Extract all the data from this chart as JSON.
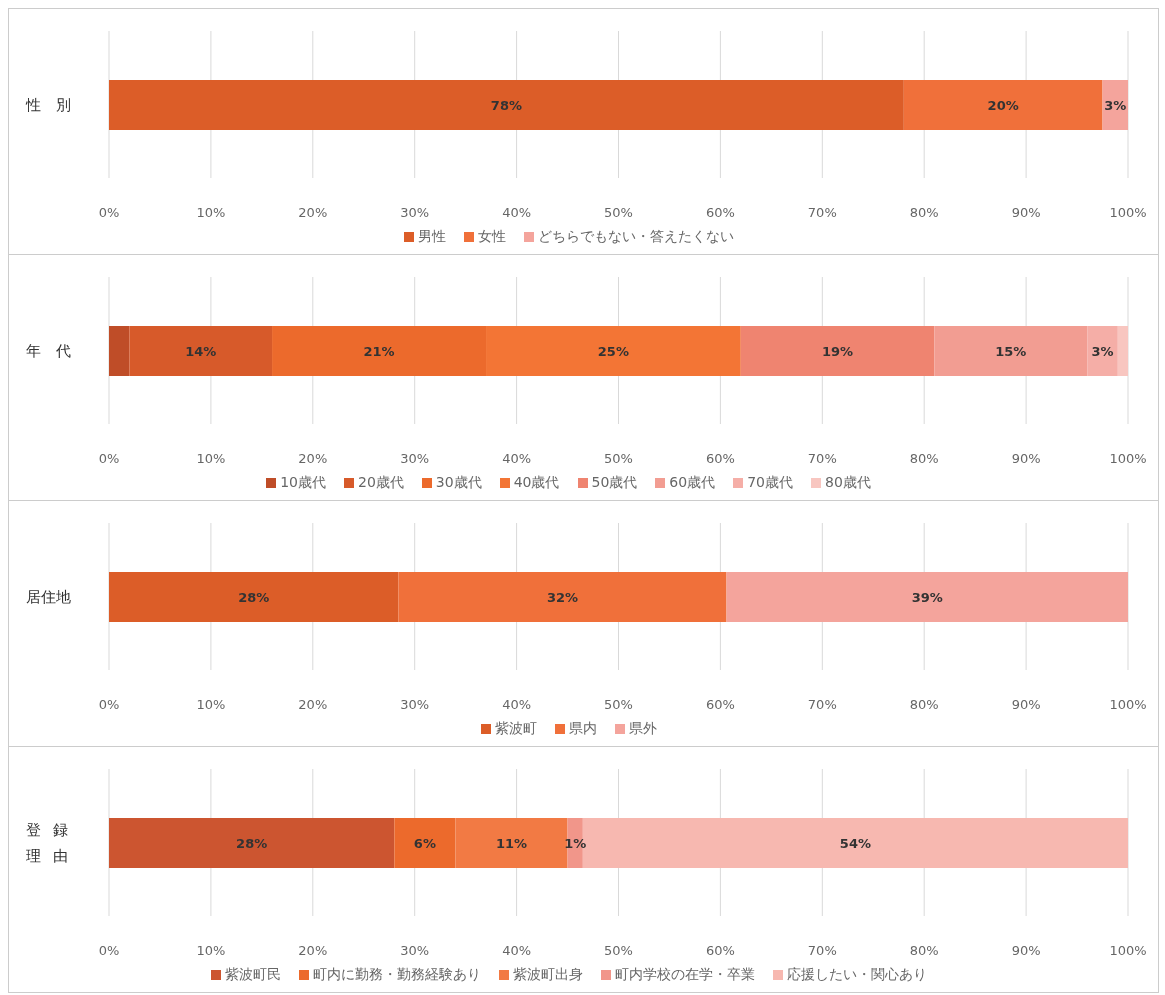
{
  "chart_data": [
    {
      "type": "bar",
      "orientation": "horizontal",
      "stacked": true,
      "categories": [
        "性　別"
      ],
      "xlim": [
        0,
        100
      ],
      "xticks": [
        {
          "value": 0,
          "label": "0%"
        },
        {
          "value": 10,
          "label": "10%"
        },
        {
          "value": 20,
          "label": "20%"
        },
        {
          "value": 30,
          "label": "30%"
        },
        {
          "value": 40,
          "label": "40%"
        },
        {
          "value": 50,
          "label": "50%"
        },
        {
          "value": 60,
          "label": "60%"
        },
        {
          "value": 70,
          "label": "70%"
        },
        {
          "value": 80,
          "label": "80%"
        },
        {
          "value": 90,
          "label": "90%"
        },
        {
          "value": 100,
          "label": "100%"
        }
      ],
      "grid": "x",
      "legend": "bottom",
      "series": [
        {
          "name": "男性",
          "color": "#dc5d28",
          "values": [
            78
          ],
          "value_labels": [
            "78%"
          ]
        },
        {
          "name": "女性",
          "color": "#f0703a",
          "values": [
            19.5
          ],
          "value_labels": [
            "20%"
          ]
        },
        {
          "name": "どちらでもない・答えたくない",
          "color": "#f4a49c",
          "values": [
            2.5
          ],
          "value_labels": [
            "3%"
          ]
        }
      ]
    },
    {
      "type": "bar",
      "orientation": "horizontal",
      "stacked": true,
      "categories": [
        "年　代"
      ],
      "xlim": [
        0,
        100
      ],
      "xticks": [
        {
          "value": 0,
          "label": "0%"
        },
        {
          "value": 10,
          "label": "10%"
        },
        {
          "value": 20,
          "label": "20%"
        },
        {
          "value": 30,
          "label": "30%"
        },
        {
          "value": 40,
          "label": "40%"
        },
        {
          "value": 50,
          "label": "50%"
        },
        {
          "value": 60,
          "label": "60%"
        },
        {
          "value": 70,
          "label": "70%"
        },
        {
          "value": 80,
          "label": "80%"
        },
        {
          "value": 90,
          "label": "90%"
        },
        {
          "value": 100,
          "label": "100%"
        }
      ],
      "grid": "x",
      "legend": "bottom",
      "series": [
        {
          "name": "10歳代",
          "color": "#bf4d28",
          "values": [
            2
          ],
          "value_labels": [
            null
          ]
        },
        {
          "name": "20歳代",
          "color": "#d75a2a",
          "values": [
            14
          ],
          "value_labels": [
            "14%"
          ]
        },
        {
          "name": "30歳代",
          "color": "#ec6a2c",
          "values": [
            21
          ],
          "value_labels": [
            "21%"
          ]
        },
        {
          "name": "40歳代",
          "color": "#f37535",
          "values": [
            25
          ],
          "value_labels": [
            "25%"
          ]
        },
        {
          "name": "50歳代",
          "color": "#ef8470",
          "values": [
            19
          ],
          "value_labels": [
            "19%"
          ]
        },
        {
          "name": "60歳代",
          "color": "#f29d92",
          "values": [
            15
          ],
          "value_labels": [
            "15%"
          ]
        },
        {
          "name": "70歳代",
          "color": "#f5aea7",
          "values": [
            3
          ],
          "value_labels": [
            "3%"
          ]
        },
        {
          "name": "80歳代",
          "color": "#f8c6c0",
          "values": [
            1
          ],
          "value_labels": [
            null
          ]
        }
      ]
    },
    {
      "type": "bar",
      "orientation": "horizontal",
      "stacked": true,
      "categories": [
        "居住地"
      ],
      "xlim": [
        0,
        100
      ],
      "xticks": [
        {
          "value": 0,
          "label": "0%"
        },
        {
          "value": 10,
          "label": "10%"
        },
        {
          "value": 20,
          "label": "20%"
        },
        {
          "value": 30,
          "label": "30%"
        },
        {
          "value": 40,
          "label": "40%"
        },
        {
          "value": 50,
          "label": "50%"
        },
        {
          "value": 60,
          "label": "60%"
        },
        {
          "value": 70,
          "label": "70%"
        },
        {
          "value": 80,
          "label": "80%"
        },
        {
          "value": 90,
          "label": "90%"
        },
        {
          "value": 100,
          "label": "100%"
        }
      ],
      "grid": "x",
      "legend": "bottom",
      "series": [
        {
          "name": "紫波町",
          "color": "#dc5d28",
          "values": [
            28.4
          ],
          "value_labels": [
            "28%"
          ]
        },
        {
          "name": "県内",
          "color": "#f0703a",
          "values": [
            32.2
          ],
          "value_labels": [
            "32%"
          ]
        },
        {
          "name": "県外",
          "color": "#f4a49c",
          "values": [
            39.4
          ],
          "value_labels": [
            "39%"
          ]
        }
      ]
    },
    {
      "type": "bar",
      "orientation": "horizontal",
      "stacked": true,
      "categories": [
        "登録理由"
      ],
      "xlim": [
        0,
        100
      ],
      "xticks": [
        {
          "value": 0,
          "label": "0%"
        },
        {
          "value": 10,
          "label": "10%"
        },
        {
          "value": 20,
          "label": "20%"
        },
        {
          "value": 30,
          "label": "30%"
        },
        {
          "value": 40,
          "label": "40%"
        },
        {
          "value": 50,
          "label": "50%"
        },
        {
          "value": 60,
          "label": "60%"
        },
        {
          "value": 70,
          "label": "70%"
        },
        {
          "value": 80,
          "label": "80%"
        },
        {
          "value": 90,
          "label": "90%"
        },
        {
          "value": 100,
          "label": "100%"
        }
      ],
      "grid": "x",
      "legend": "bottom",
      "series": [
        {
          "name": "紫波町民",
          "color": "#cc5530",
          "values": [
            28
          ],
          "value_labels": [
            "28%"
          ]
        },
        {
          "name": "町内に勤務・勤務経験あり",
          "color": "#ec6a2c",
          "values": [
            6
          ],
          "value_labels": [
            "6%"
          ]
        },
        {
          "name": "紫波町出身",
          "color": "#f27a44",
          "values": [
            11
          ],
          "value_labels": [
            "11%"
          ]
        },
        {
          "name": "町内学校の在学・卒業",
          "color": "#f1968a",
          "values": [
            1.5
          ],
          "value_labels": [
            "1%"
          ]
        },
        {
          "name": "応援したい・関心あり",
          "color": "#f7b8b0",
          "values": [
            53.5
          ],
          "value_labels": [
            "54%"
          ]
        }
      ]
    }
  ]
}
